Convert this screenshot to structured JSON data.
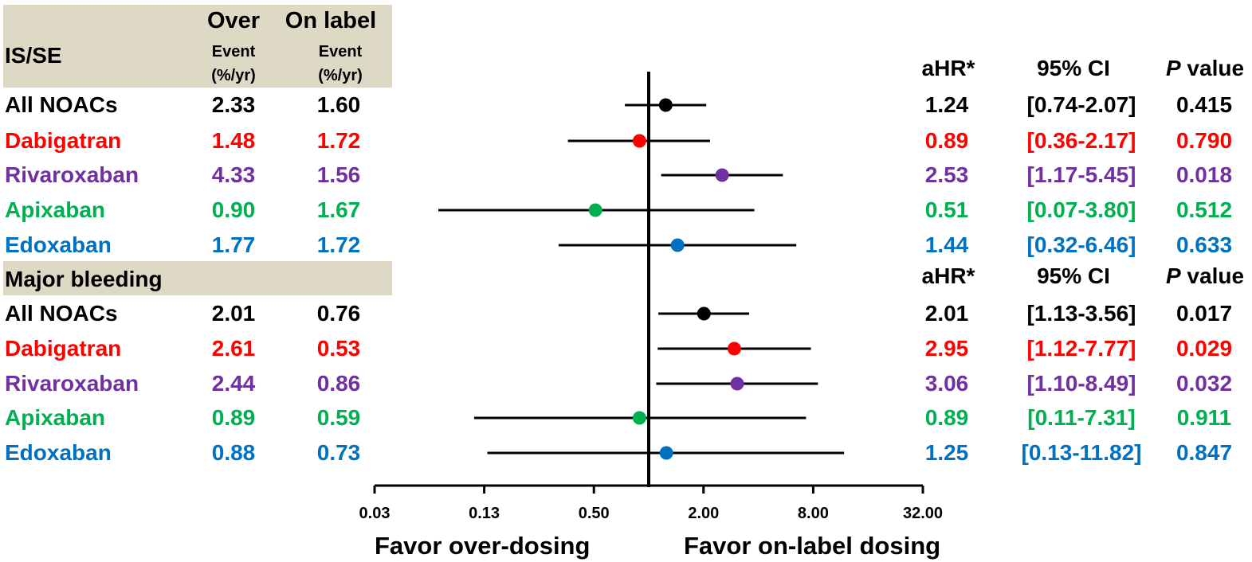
{
  "colors": {
    "black": "#000000",
    "red": "#ff0000",
    "purple": "#7030a0",
    "green": "#00b050",
    "blue": "#0070c0",
    "header_fill": "#ddd9c4"
  },
  "left_table": {
    "col_over": "Over",
    "col_onlabel": "On label",
    "event_label": "Event",
    "unit_label": "(%/yr)",
    "sections": [
      {
        "title": "IS/SE",
        "rows": [
          {
            "drug": "All NOACs",
            "over": "2.33",
            "onlabel": "1.60",
            "color": "#000000"
          },
          {
            "drug": "Dabigatran",
            "over": "1.48",
            "onlabel": "1.72",
            "color": "#ff0000"
          },
          {
            "drug": "Rivaroxaban",
            "over": "4.33",
            "onlabel": "1.56",
            "color": "#7030a0"
          },
          {
            "drug": "Apixaban",
            "over": "0.90",
            "onlabel": "1.67",
            "color": "#00b050"
          },
          {
            "drug": "Edoxaban",
            "over": "1.77",
            "onlabel": "1.72",
            "color": "#0070c0"
          }
        ]
      },
      {
        "title": "Major bleeding",
        "rows": [
          {
            "drug": "All NOACs",
            "over": "2.01",
            "onlabel": "0.76",
            "color": "#000000"
          },
          {
            "drug": "Dabigatran",
            "over": "2.61",
            "onlabel": "0.53",
            "color": "#ff0000"
          },
          {
            "drug": "Rivaroxaban",
            "over": "2.44",
            "onlabel": "0.86",
            "color": "#7030a0"
          },
          {
            "drug": "Apixaban",
            "over": "0.89",
            "onlabel": "0.59",
            "color": "#00b050"
          },
          {
            "drug": "Edoxaban",
            "over": "0.88",
            "onlabel": "0.73",
            "color": "#0070c0"
          }
        ]
      }
    ]
  },
  "right_table": {
    "col_ahr": "aHR*",
    "col_ci": "95% CI",
    "col_p_italic": "P",
    "col_p_rest": " value",
    "sections": [
      {
        "rows": [
          {
            "ahr": "1.24",
            "ci": "[0.74-2.07]",
            "p": "0.415",
            "color": "#000000"
          },
          {
            "ahr": "0.89",
            "ci": "[0.36-2.17]",
            "p": "0.790",
            "color": "#ff0000"
          },
          {
            "ahr": "2.53",
            "ci": "[1.17-5.45]",
            "p": "0.018",
            "color": "#7030a0"
          },
          {
            "ahr": "0.51",
            "ci": "[0.07-3.80]",
            "p": "0.512",
            "color": "#00b050"
          },
          {
            "ahr": "1.44",
            "ci": "[0.32-6.46]",
            "p": "0.633",
            "color": "#0070c0"
          }
        ]
      },
      {
        "rows": [
          {
            "ahr": "2.01",
            "ci": "[1.13-3.56]",
            "p": "0.017",
            "color": "#000000"
          },
          {
            "ahr": "2.95",
            "ci": "[1.12-7.77]",
            "p": "0.029",
            "color": "#ff0000"
          },
          {
            "ahr": "3.06",
            "ci": "[1.10-8.49]",
            "p": "0.032",
            "color": "#7030a0"
          },
          {
            "ahr": "0.89",
            "ci": "[0.11-7.31]",
            "p": "0.911",
            "color": "#00b050"
          },
          {
            "ahr": "1.25",
            "ci": "[0.13-11.82]",
            "p": "0.847",
            "color": "#0070c0"
          }
        ]
      }
    ]
  },
  "chart_data": {
    "type": "scatter",
    "subtype": "forest-plot",
    "x_scale": "log2",
    "xlim": [
      0.03,
      32.0
    ],
    "x_ticks": [
      "0.03",
      "0.13",
      "0.50",
      "2.00",
      "8.00",
      "32.00"
    ],
    "x_tick_values": [
      0.03125,
      0.125,
      0.5,
      2,
      8,
      32
    ],
    "reference_line": 1,
    "label_left": "Favor over-dosing",
    "label_right": "Favor on-label dosing",
    "series": [
      {
        "name": "IS/SE",
        "points": [
          {
            "label": "All NOACs",
            "hr": 1.24,
            "lo": 0.74,
            "hi": 2.07,
            "color": "#000000"
          },
          {
            "label": "Dabigatran",
            "hr": 0.89,
            "lo": 0.36,
            "hi": 2.17,
            "color": "#ff0000"
          },
          {
            "label": "Rivaroxaban",
            "hr": 2.53,
            "lo": 1.17,
            "hi": 5.45,
            "color": "#7030a0"
          },
          {
            "label": "Apixaban",
            "hr": 0.51,
            "lo": 0.07,
            "hi": 3.8,
            "color": "#00b050"
          },
          {
            "label": "Edoxaban",
            "hr": 1.44,
            "lo": 0.32,
            "hi": 6.46,
            "color": "#0070c0"
          }
        ]
      },
      {
        "name": "Major bleeding",
        "points": [
          {
            "label": "All NOACs",
            "hr": 2.01,
            "lo": 1.13,
            "hi": 3.56,
            "color": "#000000"
          },
          {
            "label": "Dabigatran",
            "hr": 2.95,
            "lo": 1.12,
            "hi": 7.77,
            "color": "#ff0000"
          },
          {
            "label": "Rivaroxaban",
            "hr": 3.06,
            "lo": 1.1,
            "hi": 8.49,
            "color": "#7030a0"
          },
          {
            "label": "Apixaban",
            "hr": 0.89,
            "lo": 0.11,
            "hi": 7.31,
            "color": "#00b050"
          },
          {
            "label": "Edoxaban",
            "hr": 1.25,
            "lo": 0.13,
            "hi": 11.82,
            "color": "#0070c0"
          }
        ]
      }
    ]
  }
}
